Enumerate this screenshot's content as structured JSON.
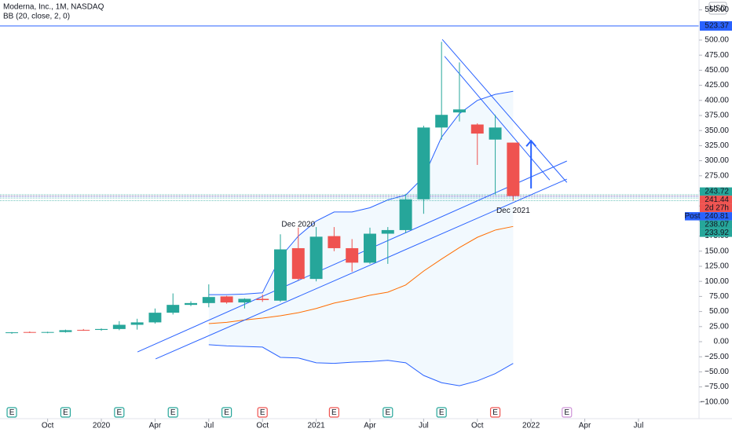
{
  "chart_data": {
    "type": "candlestick",
    "title": "Moderna, Inc., 1M, NASDAQ",
    "indicator": "BB (20, close, 2, 0)",
    "currency": "USD",
    "up_color": "#26a69a",
    "down_color": "#ef5350",
    "open": [
      14.5,
      16,
      15,
      16,
      19.6,
      19.5,
      21,
      28,
      32,
      48,
      61,
      64,
      75,
      65,
      71,
      68,
      155,
      104,
      175,
      155,
      131,
      179,
      185,
      236,
      355,
      380,
      360,
      335,
      330
    ],
    "high": [
      16,
      17,
      16.5,
      20,
      21,
      22,
      34,
      38,
      55,
      80,
      67,
      95,
      76,
      72,
      78,
      178,
      189,
      190,
      190,
      170,
      189,
      190,
      245,
      358,
      497,
      463,
      362,
      376,
      330
    ],
    "low": [
      13,
      14.5,
      14,
      15,
      18,
      18,
      19,
      20,
      30,
      45,
      59,
      57,
      63,
      55,
      66,
      66,
      102,
      100,
      150,
      116,
      129,
      129,
      180,
      212,
      335,
      365,
      293,
      243,
      233.92
    ],
    "close": [
      15.5,
      15,
      16,
      19,
      19.5,
      21,
      28,
      32,
      48,
      61,
      64,
      74,
      65,
      71,
      69,
      153,
      104,
      174,
      155,
      131,
      179,
      185,
      236,
      355,
      376,
      385,
      345,
      355,
      241.44
    ],
    "bands": {
      "upper_color": "#2962ff",
      "basis_color": "#ff6d00",
      "lower_color": "#2962ff",
      "fill_color": "#2196f3",
      "upper": [
        null,
        null,
        null,
        null,
        null,
        null,
        null,
        null,
        null,
        null,
        null,
        78,
        78,
        79,
        81,
        140,
        175,
        200,
        215,
        215,
        222,
        235,
        243,
        273,
        339,
        378,
        400,
        410,
        415
      ],
      "basis": [
        null,
        null,
        null,
        null,
        null,
        null,
        null,
        null,
        null,
        null,
        null,
        30,
        32,
        36,
        39,
        43,
        48,
        55,
        64,
        70,
        77,
        82,
        94,
        117,
        137,
        156,
        173,
        185,
        191
      ],
      "lower": [
        null,
        null,
        null,
        null,
        null,
        null,
        null,
        null,
        null,
        null,
        null,
        -5,
        -7,
        -8,
        -9,
        -26,
        -27,
        -35,
        -36,
        -34,
        -33,
        -31,
        -35,
        -56,
        -68,
        -73,
        -65,
        -53,
        -36
      ]
    },
    "xlim": [
      -0.66,
      38.38
    ],
    "xticks": [
      {
        "value": 2,
        "label": "Oct"
      },
      {
        "value": 5,
        "label": "2020"
      },
      {
        "value": 8,
        "label": "Apr"
      },
      {
        "value": 11,
        "label": "Jul"
      },
      {
        "value": 14,
        "label": "Oct"
      },
      {
        "value": 17,
        "label": "2021"
      },
      {
        "value": 20,
        "label": "Apr"
      },
      {
        "value": 23,
        "label": "Jul"
      },
      {
        "value": 26,
        "label": "Oct"
      },
      {
        "value": 29,
        "label": "2022"
      },
      {
        "value": 32,
        "label": "Apr"
      },
      {
        "value": 35,
        "label": "Jul"
      }
    ],
    "ylim": [
      -127.6,
      566.4
    ],
    "yticks": [
      {
        "value": -100,
        "label": "−100.00"
      },
      {
        "value": -75,
        "label": "−75.00"
      },
      {
        "value": -50,
        "label": "−50.00"
      },
      {
        "value": -25,
        "label": "−25.00"
      },
      {
        "value": 0,
        "label": "0.00"
      },
      {
        "value": 25,
        "label": "25.00"
      },
      {
        "value": 50,
        "label": "50.00"
      },
      {
        "value": 75,
        "label": "75.00"
      },
      {
        "value": 100,
        "label": "100.00"
      },
      {
        "value": 125,
        "label": "125.00"
      },
      {
        "value": 150,
        "label": "150.00"
      },
      {
        "value": 175,
        "label": "175.00"
      },
      {
        "value": 200,
        "label": "200.00"
      },
      {
        "value": 225,
        "label": "225.00"
      },
      {
        "value": 250,
        "label": "250.00"
      },
      {
        "value": 275,
        "label": "275.00"
      },
      {
        "value": 300,
        "label": "300.00"
      },
      {
        "value": 325,
        "label": "325.00"
      },
      {
        "value": 350,
        "label": "350.00"
      },
      {
        "value": 375,
        "label": "375.00"
      },
      {
        "value": 400,
        "label": "400.00"
      },
      {
        "value": 425,
        "label": "425.00"
      },
      {
        "value": 450,
        "label": "450.00"
      },
      {
        "value": 475,
        "label": "475.00"
      },
      {
        "value": 500,
        "label": "500.00"
      },
      {
        "value": 550,
        "label": "550.00"
      }
    ],
    "price_lines": [
      {
        "value": 523.37,
        "color": "#2962ff"
      },
      {
        "value": 243.72,
        "color": "#26a69a"
      },
      {
        "value": 241.44,
        "color": "#ef5350"
      },
      {
        "value": 240.81,
        "color": "#2962ff"
      },
      {
        "value": 238.07,
        "color": "#26a69a"
      },
      {
        "value": 233.92,
        "color": "#26a69a"
      }
    ],
    "countdown": "2d 27h",
    "post_label": "Post",
    "annotations": [
      {
        "text": "Dec 2020",
        "x": 16,
        "y": 194
      },
      {
        "text": "Dec 2021",
        "x": 28,
        "y": 217
      }
    ],
    "trendline_color": "#2962ff",
    "trendlines": [
      {
        "x": [
          7.02,
          31.0
        ],
        "y": [
          -17,
          299.5
        ]
      },
      {
        "x": [
          8.03,
          31.0
        ],
        "y": [
          -28.6,
          269.5
        ]
      },
      {
        "x": [
          24.04,
          31.0
        ],
        "y": [
          501,
          264
        ]
      },
      {
        "x": [
          24.17,
          30.04
        ],
        "y": [
          473,
          268
        ]
      }
    ],
    "arrow": {
      "x": 29.0,
      "y": [
        254,
        333
      ]
    },
    "earnings_label": "E",
    "earnings": [
      {
        "x": 0,
        "color": "#26a69a"
      },
      {
        "x": 3,
        "color": "#26a69a"
      },
      {
        "x": 6,
        "color": "#26a69a"
      },
      {
        "x": 9,
        "color": "#26a69a"
      },
      {
        "x": 12,
        "color": "#26a69a"
      },
      {
        "x": 14,
        "color": "#ef5350"
      },
      {
        "x": 18,
        "color": "#ef5350"
      },
      {
        "x": 21,
        "color": "#26a69a"
      },
      {
        "x": 24,
        "color": "#26a69a"
      },
      {
        "x": 27,
        "color": "#ef5350"
      },
      {
        "x": 31,
        "color": "#ce93d8"
      }
    ]
  }
}
